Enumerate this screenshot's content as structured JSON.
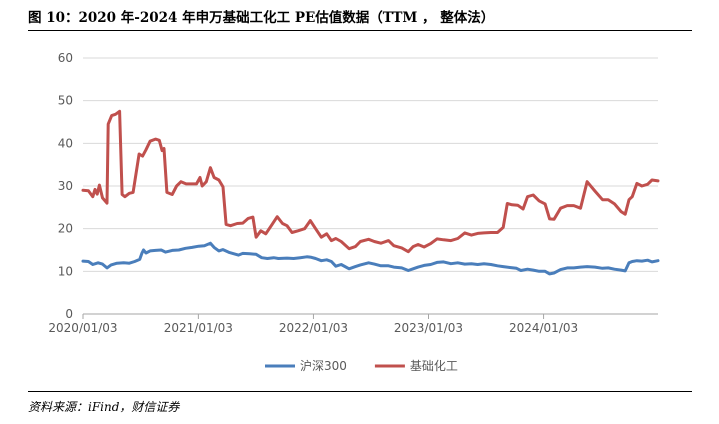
{
  "figure": {
    "title": "图 10：2020 年-2024 年申万基础工化工 PE估值数据（TTM ， 整体法）",
    "source": "资料来源：iFind，财信证券"
  },
  "chart_data": {
    "type": "line",
    "ylim": [
      0,
      60
    ],
    "yticks": [
      "0",
      "10",
      "20",
      "30",
      "40",
      "50",
      "60"
    ],
    "xlim": [
      "2020-01-03",
      "2024-12-31"
    ],
    "xticks": [
      {
        "date": "2020-01-03",
        "label": "2020/01/03"
      },
      {
        "date": "2021-01-03",
        "label": "2021/01/03"
      },
      {
        "date": "2022-01-03",
        "label": "2022/01/03"
      },
      {
        "date": "2023-01-03",
        "label": "2023/01/03"
      },
      {
        "date": "2024-01-03",
        "label": "2024/01/03"
      }
    ],
    "grid": "horizontal",
    "legend_position": "bottom",
    "series": [
      {
        "name": "沪深300",
        "color": "#4a7ebb",
        "points": [
          [
            "2020-01-03",
            12.4
          ],
          [
            "2020-01-20",
            12.3
          ],
          [
            "2020-02-03",
            11.6
          ],
          [
            "2020-02-20",
            12.0
          ],
          [
            "2020-03-05",
            11.7
          ],
          [
            "2020-03-19",
            10.8
          ],
          [
            "2020-04-01",
            11.5
          ],
          [
            "2020-04-20",
            11.9
          ],
          [
            "2020-05-11",
            12.0
          ],
          [
            "2020-05-29",
            11.9
          ],
          [
            "2020-06-15",
            12.3
          ],
          [
            "2020-07-01",
            12.8
          ],
          [
            "2020-07-08",
            14.3
          ],
          [
            "2020-07-13",
            15.0
          ],
          [
            "2020-07-21",
            14.3
          ],
          [
            "2020-08-03",
            14.8
          ],
          [
            "2020-08-20",
            14.9
          ],
          [
            "2020-09-07",
            15.0
          ],
          [
            "2020-09-21",
            14.5
          ],
          [
            "2020-10-12",
            14.9
          ],
          [
            "2020-11-02",
            15.0
          ],
          [
            "2020-11-23",
            15.4
          ],
          [
            "2020-12-14",
            15.6
          ],
          [
            "2021-01-04",
            15.9
          ],
          [
            "2021-01-22",
            16.0
          ],
          [
            "2021-02-10",
            16.6
          ],
          [
            "2021-02-22",
            15.6
          ],
          [
            "2021-03-09",
            14.8
          ],
          [
            "2021-03-22",
            15.1
          ],
          [
            "2021-04-12",
            14.4
          ],
          [
            "2021-04-26",
            14.1
          ],
          [
            "2021-05-10",
            13.8
          ],
          [
            "2021-05-24",
            14.2
          ],
          [
            "2021-06-15",
            14.1
          ],
          [
            "2021-07-05",
            14.0
          ],
          [
            "2021-07-23",
            13.2
          ],
          [
            "2021-08-10",
            13.0
          ],
          [
            "2021-08-30",
            13.2
          ],
          [
            "2021-09-14",
            13.0
          ],
          [
            "2021-10-11",
            13.1
          ],
          [
            "2021-11-01",
            13.0
          ],
          [
            "2021-11-22",
            13.2
          ],
          [
            "2021-12-13",
            13.4
          ],
          [
            "2021-12-27",
            13.3
          ],
          [
            "2022-01-10",
            13.0
          ],
          [
            "2022-01-28",
            12.5
          ],
          [
            "2022-02-14",
            12.7
          ],
          [
            "2022-03-01",
            12.3
          ],
          [
            "2022-03-15",
            11.2
          ],
          [
            "2022-04-01",
            11.6
          ],
          [
            "2022-04-26",
            10.6
          ],
          [
            "2022-05-16",
            11.1
          ],
          [
            "2022-06-01",
            11.5
          ],
          [
            "2022-06-27",
            12.0
          ],
          [
            "2022-07-15",
            11.7
          ],
          [
            "2022-08-05",
            11.3
          ],
          [
            "2022-08-29",
            11.3
          ],
          [
            "2022-09-15",
            11.0
          ],
          [
            "2022-10-10",
            10.8
          ],
          [
            "2022-10-31",
            10.2
          ],
          [
            "2022-11-15",
            10.6
          ],
          [
            "2022-12-01",
            11.0
          ],
          [
            "2022-12-20",
            11.4
          ],
          [
            "2023-01-10",
            11.6
          ],
          [
            "2023-01-30",
            12.1
          ],
          [
            "2023-02-20",
            12.2
          ],
          [
            "2023-03-15",
            11.8
          ],
          [
            "2023-04-06",
            12.0
          ],
          [
            "2023-04-28",
            11.7
          ],
          [
            "2023-05-19",
            11.8
          ],
          [
            "2023-06-08",
            11.6
          ],
          [
            "2023-06-28",
            11.8
          ],
          [
            "2023-07-20",
            11.6
          ],
          [
            "2023-08-10",
            11.3
          ],
          [
            "2023-08-28",
            11.1
          ],
          [
            "2023-09-18",
            10.9
          ],
          [
            "2023-10-09",
            10.7
          ],
          [
            "2023-10-23",
            10.2
          ],
          [
            "2023-11-13",
            10.5
          ],
          [
            "2023-12-01",
            10.3
          ],
          [
            "2023-12-20",
            10.0
          ],
          [
            "2024-01-08",
            10.0
          ],
          [
            "2024-01-22",
            9.4
          ],
          [
            "2024-02-05",
            9.6
          ],
          [
            "2024-02-26",
            10.4
          ],
          [
            "2024-03-18",
            10.8
          ],
          [
            "2024-04-08",
            10.8
          ],
          [
            "2024-04-29",
            11.0
          ],
          [
            "2024-05-20",
            11.1
          ],
          [
            "2024-06-14",
            11.0
          ],
          [
            "2024-07-08",
            10.7
          ],
          [
            "2024-07-26",
            10.8
          ],
          [
            "2024-08-15",
            10.5
          ],
          [
            "2024-09-05",
            10.3
          ],
          [
            "2024-09-18",
            10.1
          ],
          [
            "2024-09-30",
            12.0
          ],
          [
            "2024-10-10",
            12.3
          ],
          [
            "2024-10-25",
            12.5
          ],
          [
            "2024-11-10",
            12.4
          ],
          [
            "2024-11-28",
            12.6
          ],
          [
            "2024-12-12",
            12.2
          ],
          [
            "2024-12-31",
            12.5
          ]
        ]
      },
      {
        "name": "基础化工",
        "color": "#c0504d",
        "points": [
          [
            "2020-01-03",
            29.0
          ],
          [
            "2020-01-20",
            28.9
          ],
          [
            "2020-02-03",
            27.5
          ],
          [
            "2020-02-10",
            29.2
          ],
          [
            "2020-02-17",
            28.1
          ],
          [
            "2020-02-24",
            30.2
          ],
          [
            "2020-03-05",
            27.2
          ],
          [
            "2020-03-19",
            26.0
          ],
          [
            "2020-03-23",
            44.5
          ],
          [
            "2020-04-03",
            46.5
          ],
          [
            "2020-04-15",
            46.8
          ],
          [
            "2020-04-28",
            47.5
          ],
          [
            "2020-05-06",
            28.0
          ],
          [
            "2020-05-15",
            27.5
          ],
          [
            "2020-05-29",
            28.3
          ],
          [
            "2020-06-10",
            28.5
          ],
          [
            "2020-06-29",
            37.5
          ],
          [
            "2020-07-10",
            37.0
          ],
          [
            "2020-07-21",
            38.5
          ],
          [
            "2020-08-03",
            40.5
          ],
          [
            "2020-08-20",
            41.0
          ],
          [
            "2020-09-01",
            40.7
          ],
          [
            "2020-09-10",
            38.3
          ],
          [
            "2020-09-16",
            38.8
          ],
          [
            "2020-09-25",
            28.5
          ],
          [
            "2020-10-12",
            28.0
          ],
          [
            "2020-10-26",
            30.0
          ],
          [
            "2020-11-09",
            31.0
          ],
          [
            "2020-11-25",
            30.5
          ],
          [
            "2020-12-11",
            30.5
          ],
          [
            "2020-12-28",
            30.5
          ],
          [
            "2021-01-08",
            32.0
          ],
          [
            "2021-01-15",
            30.0
          ],
          [
            "2021-01-28",
            31.0
          ],
          [
            "2021-02-10",
            34.3
          ],
          [
            "2021-02-22",
            32.0
          ],
          [
            "2021-03-09",
            31.4
          ],
          [
            "2021-03-22",
            29.8
          ],
          [
            "2021-04-01",
            21.0
          ],
          [
            "2021-04-15",
            20.7
          ],
          [
            "2021-05-06",
            21.2
          ],
          [
            "2021-05-24",
            21.3
          ],
          [
            "2021-06-10",
            22.4
          ],
          [
            "2021-06-25",
            22.7
          ],
          [
            "2021-07-05",
            18.0
          ],
          [
            "2021-07-20",
            19.5
          ],
          [
            "2021-08-05",
            18.8
          ],
          [
            "2021-08-25",
            21.0
          ],
          [
            "2021-09-10",
            22.8
          ],
          [
            "2021-09-27",
            21.2
          ],
          [
            "2021-10-11",
            20.7
          ],
          [
            "2021-10-27",
            19.1
          ],
          [
            "2021-11-15",
            19.5
          ],
          [
            "2021-12-06",
            20.0
          ],
          [
            "2021-12-24",
            21.9
          ],
          [
            "2022-01-10",
            20.0
          ],
          [
            "2022-01-28",
            18.0
          ],
          [
            "2022-02-14",
            18.8
          ],
          [
            "2022-03-01",
            17.2
          ],
          [
            "2022-03-15",
            17.7
          ],
          [
            "2022-04-01",
            17.0
          ],
          [
            "2022-04-26",
            15.3
          ],
          [
            "2022-05-16",
            15.8
          ],
          [
            "2022-06-01",
            17.0
          ],
          [
            "2022-06-27",
            17.5
          ],
          [
            "2022-07-15",
            17.0
          ],
          [
            "2022-08-05",
            16.6
          ],
          [
            "2022-08-29",
            17.2
          ],
          [
            "2022-09-15",
            16.0
          ],
          [
            "2022-10-10",
            15.5
          ],
          [
            "2022-10-31",
            14.6
          ],
          [
            "2022-11-15",
            15.8
          ],
          [
            "2022-12-01",
            16.3
          ],
          [
            "2022-12-20",
            15.7
          ],
          [
            "2023-01-10",
            16.5
          ],
          [
            "2023-01-30",
            17.6
          ],
          [
            "2023-02-20",
            17.4
          ],
          [
            "2023-03-15",
            17.2
          ],
          [
            "2023-04-06",
            17.7
          ],
          [
            "2023-04-28",
            19.0
          ],
          [
            "2023-05-19",
            18.5
          ],
          [
            "2023-06-08",
            18.9
          ],
          [
            "2023-06-28",
            19.0
          ],
          [
            "2023-07-20",
            19.1
          ],
          [
            "2023-08-10",
            19.1
          ],
          [
            "2023-08-28",
            20.3
          ],
          [
            "2023-09-10",
            25.9
          ],
          [
            "2023-09-25",
            25.6
          ],
          [
            "2023-10-13",
            25.5
          ],
          [
            "2023-10-30",
            24.6
          ],
          [
            "2023-11-13",
            27.5
          ],
          [
            "2023-12-01",
            27.9
          ],
          [
            "2023-12-20",
            26.5
          ],
          [
            "2024-01-08",
            25.8
          ],
          [
            "2024-01-22",
            22.3
          ],
          [
            "2024-02-05",
            22.2
          ],
          [
            "2024-02-26",
            24.8
          ],
          [
            "2024-03-18",
            25.4
          ],
          [
            "2024-04-08",
            25.4
          ],
          [
            "2024-04-29",
            24.8
          ],
          [
            "2024-05-20",
            31.0
          ],
          [
            "2024-06-14",
            28.8
          ],
          [
            "2024-07-08",
            26.8
          ],
          [
            "2024-07-26",
            26.8
          ],
          [
            "2024-08-15",
            25.8
          ],
          [
            "2024-09-05",
            24.0
          ],
          [
            "2024-09-18",
            23.4
          ],
          [
            "2024-09-30",
            26.8
          ],
          [
            "2024-10-10",
            27.5
          ],
          [
            "2024-10-25",
            30.6
          ],
          [
            "2024-11-10",
            30.0
          ],
          [
            "2024-11-28",
            30.4
          ],
          [
            "2024-12-12",
            31.4
          ],
          [
            "2024-12-31",
            31.2
          ]
        ]
      }
    ]
  }
}
